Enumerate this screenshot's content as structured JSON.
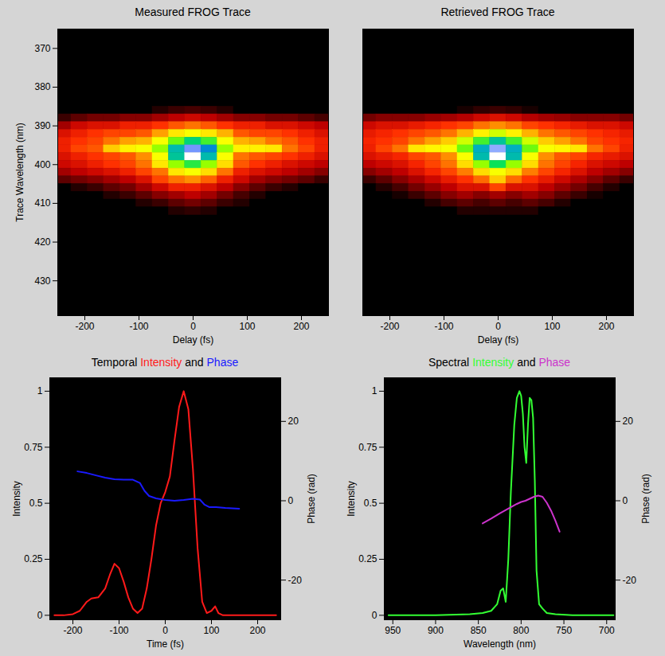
{
  "chart_data": [
    {
      "type": "heatmap",
      "title": "Measured FROG Trace",
      "xlabel": "Delay (fs)",
      "ylabel": "Trace Wavelength (nm)",
      "xlim": [
        -250,
        250
      ],
      "xticks": [
        -200,
        -100,
        0,
        100,
        200
      ],
      "ylim": [
        439,
        365
      ],
      "yticks": [
        370,
        380,
        390,
        400,
        410,
        420,
        430
      ],
      "x": [
        -240,
        -210,
        -180,
        -150,
        -120,
        -90,
        -60,
        -30,
        0,
        30,
        60,
        90,
        120,
        150,
        180,
        210,
        240
      ],
      "y": [
        386,
        388,
        390,
        392,
        394,
        396,
        398,
        400,
        402,
        404,
        406,
        408,
        410,
        412
      ],
      "cells": [
        [
          0,
          0,
          0,
          0,
          0,
          0,
          0.03,
          0.05,
          0.06,
          0.05,
          0.03,
          0,
          0,
          0,
          0,
          0,
          0
        ],
        [
          0.05,
          0.08,
          0.1,
          0.1,
          0.12,
          0.12,
          0.15,
          0.18,
          0.2,
          0.18,
          0.15,
          0.12,
          0.12,
          0.1,
          0.1,
          0.08,
          0.06
        ],
        [
          0.15,
          0.2,
          0.22,
          0.22,
          0.25,
          0.25,
          0.28,
          0.32,
          0.35,
          0.32,
          0.28,
          0.25,
          0.25,
          0.22,
          0.22,
          0.2,
          0.18
        ],
        [
          0.22,
          0.25,
          0.28,
          0.3,
          0.3,
          0.32,
          0.4,
          0.5,
          0.55,
          0.5,
          0.42,
          0.32,
          0.3,
          0.3,
          0.28,
          0.25,
          0.22
        ],
        [
          0.25,
          0.28,
          0.3,
          0.35,
          0.4,
          0.42,
          0.55,
          0.65,
          0.75,
          0.68,
          0.55,
          0.42,
          0.4,
          0.35,
          0.32,
          0.28,
          0.25
        ],
        [
          0.25,
          0.3,
          0.32,
          0.45,
          0.52,
          0.55,
          0.62,
          0.8,
          0.95,
          0.85,
          0.62,
          0.52,
          0.52,
          0.5,
          0.35,
          0.3,
          0.25
        ],
        [
          0.22,
          0.25,
          0.28,
          0.3,
          0.32,
          0.38,
          0.55,
          0.78,
          1.0,
          0.8,
          0.55,
          0.35,
          0.32,
          0.3,
          0.28,
          0.25,
          0.22
        ],
        [
          0.2,
          0.22,
          0.25,
          0.28,
          0.3,
          0.35,
          0.5,
          0.62,
          0.7,
          0.62,
          0.48,
          0.32,
          0.28,
          0.25,
          0.22,
          0.2,
          0.18
        ],
        [
          0.15,
          0.18,
          0.2,
          0.22,
          0.25,
          0.3,
          0.35,
          0.5,
          0.55,
          0.48,
          0.35,
          0.25,
          0.22,
          0.2,
          0.18,
          0.15,
          0.12
        ],
        [
          0.08,
          0.1,
          0.12,
          0.15,
          0.18,
          0.22,
          0.3,
          0.35,
          0.38,
          0.33,
          0.25,
          0.2,
          0.15,
          0.12,
          0.1,
          0.08,
          0.05
        ],
        [
          0,
          0.03,
          0.05,
          0.08,
          0.1,
          0.15,
          0.2,
          0.25,
          0.25,
          0.22,
          0.18,
          0.12,
          0.08,
          0.05,
          0.03,
          0,
          0
        ],
        [
          0,
          0,
          0,
          0.03,
          0.05,
          0.08,
          0.12,
          0.15,
          0.18,
          0.15,
          0.1,
          0.06,
          0.03,
          0,
          0,
          0,
          0
        ],
        [
          0,
          0,
          0,
          0,
          0,
          0.03,
          0.05,
          0.08,
          0.1,
          0.08,
          0.05,
          0.03,
          0,
          0,
          0,
          0,
          0
        ],
        [
          0,
          0,
          0,
          0,
          0,
          0,
          0,
          0.03,
          0.04,
          0.03,
          0,
          0,
          0,
          0,
          0,
          0,
          0
        ]
      ]
    },
    {
      "type": "heatmap",
      "title": "Retrieved FROG Trace",
      "xlabel": "Delay (fs)",
      "tick_labels": "x",
      "xlim": [
        -250,
        250
      ],
      "xticks": [
        -200,
        -100,
        0,
        100,
        200
      ],
      "ylim": [
        439,
        365
      ],
      "x": [
        -240,
        -210,
        -180,
        -150,
        -120,
        -90,
        -60,
        -30,
        0,
        30,
        60,
        90,
        120,
        150,
        180,
        210,
        240
      ],
      "y": [
        386,
        388,
        390,
        392,
        394,
        396,
        398,
        400,
        402,
        404,
        406,
        408,
        410,
        412
      ],
      "cells": [
        [
          0,
          0,
          0,
          0,
          0,
          0,
          0.02,
          0.04,
          0.05,
          0.04,
          0.02,
          0,
          0,
          0,
          0,
          0,
          0
        ],
        [
          0.1,
          0.12,
          0.12,
          0.12,
          0.14,
          0.15,
          0.17,
          0.2,
          0.22,
          0.2,
          0.17,
          0.15,
          0.14,
          0.12,
          0.12,
          0.12,
          0.1
        ],
        [
          0.2,
          0.22,
          0.22,
          0.24,
          0.26,
          0.28,
          0.3,
          0.35,
          0.38,
          0.35,
          0.3,
          0.28,
          0.26,
          0.24,
          0.22,
          0.22,
          0.2
        ],
        [
          0.24,
          0.26,
          0.28,
          0.3,
          0.32,
          0.35,
          0.42,
          0.52,
          0.58,
          0.52,
          0.42,
          0.35,
          0.32,
          0.3,
          0.28,
          0.26,
          0.24
        ],
        [
          0.26,
          0.28,
          0.3,
          0.35,
          0.4,
          0.45,
          0.58,
          0.68,
          0.78,
          0.68,
          0.58,
          0.45,
          0.4,
          0.35,
          0.3,
          0.28,
          0.26
        ],
        [
          0.25,
          0.3,
          0.35,
          0.5,
          0.53,
          0.55,
          0.65,
          0.82,
          0.96,
          0.82,
          0.65,
          0.55,
          0.53,
          0.5,
          0.35,
          0.3,
          0.25
        ],
        [
          0.22,
          0.24,
          0.26,
          0.3,
          0.32,
          0.38,
          0.55,
          0.8,
          1.0,
          0.8,
          0.55,
          0.38,
          0.32,
          0.3,
          0.26,
          0.24,
          0.22
        ],
        [
          0.18,
          0.2,
          0.22,
          0.26,
          0.3,
          0.35,
          0.48,
          0.62,
          0.72,
          0.62,
          0.48,
          0.35,
          0.3,
          0.26,
          0.22,
          0.2,
          0.18
        ],
        [
          0.12,
          0.15,
          0.18,
          0.22,
          0.26,
          0.3,
          0.36,
          0.48,
          0.55,
          0.48,
          0.36,
          0.3,
          0.26,
          0.22,
          0.18,
          0.15,
          0.12
        ],
        [
          0.05,
          0.08,
          0.12,
          0.16,
          0.2,
          0.24,
          0.28,
          0.34,
          0.45,
          0.34,
          0.28,
          0.24,
          0.2,
          0.16,
          0.12,
          0.08,
          0.05
        ],
        [
          0,
          0.03,
          0.06,
          0.1,
          0.14,
          0.18,
          0.22,
          0.22,
          0.3,
          0.22,
          0.22,
          0.18,
          0.14,
          0.1,
          0.06,
          0.03,
          0
        ],
        [
          0,
          0,
          0.02,
          0.05,
          0.08,
          0.12,
          0.15,
          0.12,
          0.15,
          0.12,
          0.15,
          0.12,
          0.08,
          0.05,
          0.02,
          0,
          0
        ],
        [
          0,
          0,
          0,
          0,
          0.03,
          0.06,
          0.08,
          0.06,
          0.08,
          0.06,
          0.08,
          0.06,
          0.03,
          0,
          0,
          0,
          0
        ],
        [
          0,
          0,
          0,
          0,
          0,
          0,
          0.03,
          0.03,
          0.03,
          0.03,
          0.03,
          0,
          0,
          0,
          0,
          0,
          0
        ]
      ]
    },
    {
      "type": "line",
      "title": "Temporal Intensity and Phase",
      "xlabel": "Time (fs)",
      "ylabel": "Intensity",
      "y2label": "Phase (rad)",
      "xlim": [
        -250,
        250
      ],
      "xticks": [
        -200,
        -100,
        0,
        100,
        200
      ],
      "ylim": [
        -0.02,
        1.06
      ],
      "yticks": [
        0,
        0.25,
        0.5,
        0.75,
        1
      ],
      "y2lim": [
        -30,
        31
      ],
      "y2ticks": [
        -20,
        0,
        20
      ],
      "series": [
        {
          "name": "Intensity",
          "color": "#ff1a1a",
          "x": [
            -240,
            -220,
            -200,
            -185,
            -170,
            -160,
            -145,
            -130,
            -120,
            -110,
            -100,
            -90,
            -80,
            -70,
            -60,
            -50,
            -40,
            -30,
            -20,
            -10,
            0,
            10,
            20,
            30,
            40,
            50,
            60,
            70,
            80,
            90,
            100,
            108,
            115,
            125,
            150,
            200,
            240
          ],
          "values": [
            0,
            0,
            0.005,
            0.02,
            0.06,
            0.075,
            0.08,
            0.12,
            0.18,
            0.23,
            0.21,
            0.15,
            0.08,
            0.03,
            0.01,
            0.03,
            0.12,
            0.25,
            0.4,
            0.5,
            0.55,
            0.62,
            0.78,
            0.93,
            1.0,
            0.92,
            0.65,
            0.3,
            0.06,
            0.01,
            0.02,
            0.04,
            0.01,
            0,
            0,
            0,
            0
          ]
        },
        {
          "name": "Phase",
          "color": "#1a1aff",
          "axis": "y2",
          "x": [
            -190,
            -170,
            -150,
            -130,
            -110,
            -90,
            -70,
            -55,
            -45,
            -35,
            -20,
            0,
            20,
            40,
            60,
            75,
            85,
            95,
            110,
            130,
            160
          ],
          "values": [
            7.4,
            7,
            6.4,
            5.8,
            5.4,
            5.3,
            5.3,
            4.5,
            2.5,
            1.2,
            0.6,
            0.2,
            0,
            0.2,
            0.5,
            0.3,
            -1,
            -1.6,
            -1.6,
            -1.8,
            -2
          ]
        }
      ]
    },
    {
      "type": "line",
      "title": "Spectral Intensity and Phase",
      "xlabel": "Wavelength (nm)",
      "ylabel": "Intensity",
      "y2label": "Phase (rad)",
      "xlim": [
        960,
        690
      ],
      "xticks": [
        950,
        900,
        850,
        800,
        750,
        700
      ],
      "ylim": [
        -0.02,
        1.06
      ],
      "yticks": [
        0,
        0.25,
        0.5,
        0.75,
        1
      ],
      "y2lim": [
        -30,
        31
      ],
      "y2ticks": [
        -20,
        0,
        20
      ],
      "series": [
        {
          "name": "Intensity",
          "color": "#33ff33",
          "x": [
            955,
            900,
            860,
            845,
            835,
            828,
            824,
            821,
            818,
            815,
            812,
            808,
            805,
            802,
            800,
            798,
            796,
            794,
            792,
            790,
            788,
            786,
            784,
            782,
            779,
            775,
            770,
            760,
            740,
            700,
            692
          ],
          "values": [
            0,
            0,
            0.005,
            0.01,
            0.02,
            0.05,
            0.11,
            0.12,
            0.06,
            0.25,
            0.55,
            0.85,
            0.97,
            1.0,
            0.98,
            0.9,
            0.75,
            0.68,
            0.85,
            0.97,
            0.96,
            0.88,
            0.6,
            0.2,
            0.05,
            0.03,
            0.01,
            0.005,
            0,
            0,
            0
          ]
        },
        {
          "name": "Phase",
          "color": "#cc33cc",
          "axis": "y2",
          "x": [
            845,
            835,
            825,
            815,
            805,
            800,
            795,
            790,
            785,
            780,
            775,
            770,
            765,
            760,
            755
          ],
          "values": [
            -5.7,
            -4.5,
            -3.2,
            -2,
            -0.8,
            -0.3,
            0,
            0.5,
            1,
            1.3,
            1,
            -0.5,
            -2.5,
            -5,
            -7.8
          ]
        }
      ]
    }
  ]
}
